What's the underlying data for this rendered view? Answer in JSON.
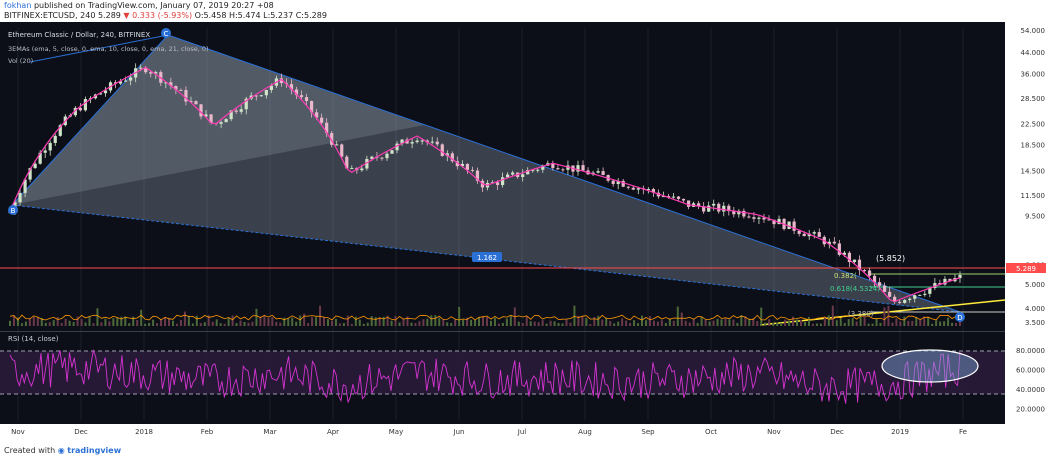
{
  "header": {
    "author": "fokhan",
    "published": "published on TradingView.com, January 07, 2019 20:27 +08",
    "symbol": "BITFINEX:ETCUSD, 240",
    "last": "5.289",
    "change": "0.333 (-5.93%)",
    "ohlc": "O:5.458 H:5.474 L:5.237 C:5.289"
  },
  "legend": {
    "title": "Ethereum Classic / Dollar, 240, BITFINEX",
    "emas": "3EMAs (ema, 5, close, 0, ema, 10, close, 0, ema, 21, close, 0)",
    "vol": "Vol (20)",
    "rsi": "RSI (14, close)"
  },
  "annotations": {
    "pattern_points": [
      "B",
      "C",
      "D"
    ],
    "ratio": "1.162",
    "fib_high": "(5.852)",
    "fib_382": "0.382(",
    "fib_618": "0.618(4.5324)",
    "fib_low": "(3.380)"
  },
  "price_axis": [
    "54.000",
    "44.000",
    "36.000",
    "28.500",
    "22.500",
    "18.500",
    "14.500",
    "11.500",
    "9.500",
    "6.000",
    "5.000",
    "4.000",
    "3.500"
  ],
  "current_price_label": "5.289",
  "rsi_axis": [
    "80.0000",
    "60.0000",
    "40.0000",
    "20.0000"
  ],
  "time_axis": [
    "Nov",
    "Dec",
    "2018",
    "Feb",
    "Mar",
    "Apr",
    "May",
    "Jun",
    "Jul",
    "Aug",
    "Sep",
    "Oct",
    "Nov",
    "Dec",
    "2019",
    "Fe"
  ],
  "footer": {
    "prefix": "Created with",
    "brand": "tradingview"
  },
  "colors": {
    "background": "#0c0f17",
    "candle_up": "#cfe3c9",
    "candle_down": "#e8b7c9",
    "ema_fast": "#ff3bb4",
    "triangle_fill": "#a9b6c8",
    "trendline": "#ffeb3b",
    "rsi_line": "#d534d1",
    "rsi_band": "#2c1b3d",
    "price_line": "#ff4d4d"
  },
  "chart_data": [
    {
      "type": "line",
      "title": "Ethereum Classic / Dollar, 240, BITFINEX",
      "x": [
        "Nov",
        "Dec",
        "2018",
        "Feb",
        "Mar",
        "Apr",
        "May",
        "Jun",
        "Jul",
        "Aug",
        "Sep",
        "Oct",
        "Nov",
        "Dec",
        "2019"
      ],
      "series": [
        {
          "name": "ETCUSD",
          "values": [
            9.8,
            26.0,
            38.0,
            22.0,
            34.0,
            14.0,
            20.0,
            12.5,
            15.5,
            13.0,
            10.5,
            9.6,
            7.5,
            4.2,
            5.3
          ]
        }
      ],
      "ylim": [
        3.5,
        54.0
      ],
      "yscale": "log",
      "legend": "top-left"
    },
    {
      "type": "line",
      "title": "RSI (14, close)",
      "x": [
        "Nov",
        "Dec",
        "2018",
        "Feb",
        "Mar",
        "Apr",
        "May",
        "Jun",
        "Jul",
        "Aug",
        "Sep",
        "Oct",
        "Nov",
        "Dec",
        "2019"
      ],
      "series": [
        {
          "name": "RSI",
          "values": [
            58,
            62,
            55,
            48,
            56,
            44,
            57,
            49,
            52,
            47,
            50,
            55,
            42,
            45,
            62
          ]
        }
      ],
      "ylim": [
        10,
        90
      ]
    }
  ]
}
